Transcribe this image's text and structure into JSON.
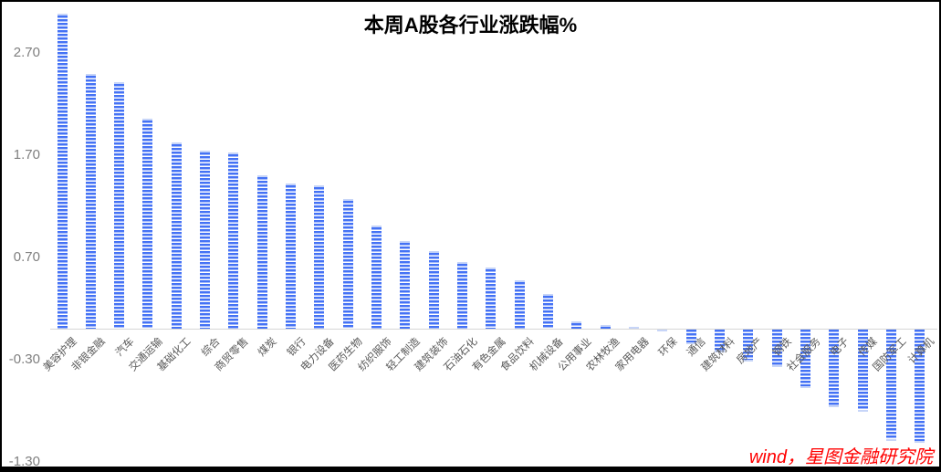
{
  "chart": {
    "title": "本周A股各行业涨跌幅%",
    "source": "wind，星图金融研究院"
  },
  "chart_data": {
    "type": "bar",
    "title": "本周A股各行业涨跌幅%",
    "xlabel": "",
    "ylabel": "",
    "categories": [
      "美容护理",
      "非银金融",
      "汽车",
      "交通运输",
      "基础化工",
      "综合",
      "商贸零售",
      "煤炭",
      "银行",
      "电力设备",
      "医药生物",
      "纺织服饰",
      "轻工制造",
      "建筑装饰",
      "石油石化",
      "有色金属",
      "食品饮料",
      "机械设备",
      "公用事业",
      "农林牧渔",
      "家用电器",
      "环保",
      "通信",
      "建筑材料",
      "房地产",
      "钢铁",
      "社会服务",
      "电子",
      "传媒",
      "国防军工",
      "计算机"
    ],
    "values": [
      3.08,
      2.49,
      2.41,
      2.05,
      1.82,
      1.74,
      1.72,
      1.5,
      1.42,
      1.4,
      1.27,
      1.01,
      0.86,
      0.76,
      0.65,
      0.6,
      0.47,
      0.34,
      0.07,
      0.04,
      0.02,
      -0.01,
      -0.14,
      -0.22,
      -0.31,
      -0.37,
      -0.57,
      -0.76,
      -0.8,
      -1.09,
      -1.11
    ],
    "y_tick_labels": [
      "2.70",
      "1.70",
      "0.70",
      "-0.30",
      "-1.30"
    ],
    "y_tick_values": [
      2.7,
      1.7,
      0.7,
      -0.3,
      -1.3
    ],
    "ylim": [
      -1.45,
      3.2
    ],
    "grid": false,
    "legend": "none",
    "sorted": "descending",
    "annotations": [
      "wind，星图金融研究院"
    ],
    "colors": {
      "bar_fill": "#4472f5",
      "bar_cap": "#c7d5f8",
      "bar_stripe_gap": "#ffffff",
      "axis_line": "#d6d6d6",
      "y_tick_text": "#7f7f7f",
      "category_text": "#595959",
      "title_text": "#000000",
      "source_text": "#ff0000"
    },
    "bar_style": "horizontal-striped"
  }
}
